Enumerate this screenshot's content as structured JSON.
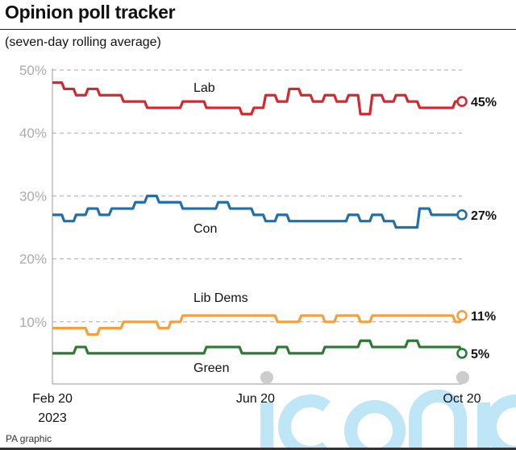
{
  "title": "Opinion poll tracker",
  "subtitle": "(seven-day rolling average)",
  "source": "PA graphic",
  "watermark": "iconic",
  "chart_data": {
    "type": "line",
    "title": "Opinion poll tracker",
    "subtitle": "(seven-day rolling average)",
    "ylim": [
      0,
      50
    ],
    "y_ticks": [
      "10%",
      "20%",
      "30%",
      "40%",
      "50%"
    ],
    "y_tick_values": [
      10,
      20,
      30,
      40,
      50
    ],
    "x_ticks": [
      {
        "date": "2023-02-20",
        "label": "Feb 20",
        "sublabel": "2023"
      },
      {
        "date": "2023-06-20",
        "label": "Jun 20",
        "sublabel": ""
      },
      {
        "date": "2023-10-20",
        "label": "Oct 20",
        "sublabel": ""
      }
    ],
    "xlim": [
      "2023-02-20",
      "2023-10-20"
    ],
    "grid": "horizontal dashed",
    "x": [
      "2023-02-20",
      "2023-02-27",
      "2023-03-06",
      "2023-03-13",
      "2023-03-20",
      "2023-03-27",
      "2023-04-03",
      "2023-04-10",
      "2023-04-17",
      "2023-04-24",
      "2023-05-01",
      "2023-05-08",
      "2023-05-15",
      "2023-05-22",
      "2023-05-29",
      "2023-06-05",
      "2023-06-12",
      "2023-06-19",
      "2023-06-26",
      "2023-07-03",
      "2023-07-10",
      "2023-07-17",
      "2023-07-24",
      "2023-07-31",
      "2023-08-07",
      "2023-08-14",
      "2023-08-21",
      "2023-08-28",
      "2023-09-04",
      "2023-09-11",
      "2023-09-18",
      "2023-09-25",
      "2023-10-02",
      "2023-10-09",
      "2023-10-16",
      "2023-10-20"
    ],
    "series": [
      {
        "name": "Lab",
        "color": "#d7262c",
        "end_label": "45%",
        "values": [
          48,
          47,
          46,
          47,
          46,
          46,
          45,
          45,
          44,
          44,
          44,
          45,
          45,
          44,
          44,
          44,
          43,
          44,
          46,
          45,
          47,
          46,
          45,
          46,
          45,
          46,
          43,
          46,
          45,
          46,
          45,
          44,
          44,
          44,
          45,
          45
        ]
      },
      {
        "name": "Con",
        "color": "#1f6fad",
        "end_label": "27%",
        "values": [
          27,
          26,
          27,
          28,
          27,
          28,
          28,
          29,
          30,
          29,
          29,
          28,
          28,
          28,
          29,
          28,
          28,
          27,
          26,
          27,
          26,
          26,
          26,
          26,
          26,
          27,
          26,
          27,
          26,
          25,
          25,
          28,
          27,
          27,
          27,
          27
        ]
      },
      {
        "name": "Lib Dems",
        "color": "#f4a03c",
        "end_label": "11%",
        "values": [
          9,
          9,
          9,
          8,
          9,
          9,
          10,
          10,
          10,
          9,
          10,
          11,
          11,
          11,
          11,
          11,
          11,
          11,
          11,
          10,
          10,
          11,
          11,
          10,
          11,
          11,
          10,
          11,
          11,
          11,
          11,
          11,
          11,
          11,
          10,
          11
        ]
      },
      {
        "name": "Green",
        "color": "#2a7a35",
        "end_label": "5%",
        "values": [
          5,
          5,
          6,
          5,
          5,
          5,
          5,
          5,
          5,
          5,
          5,
          5,
          5,
          6,
          6,
          6,
          5,
          5,
          5,
          6,
          5,
          5,
          5,
          6,
          6,
          6,
          7,
          6,
          6,
          6,
          7,
          6,
          6,
          6,
          6,
          5
        ]
      }
    ]
  }
}
